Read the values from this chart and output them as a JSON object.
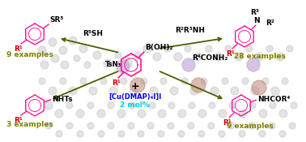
{
  "bg_color": "#ffffff",
  "pink": "#FF1493",
  "dark_red": "#CC0000",
  "olive": "#808000",
  "dark_green": "#4B6000",
  "blue": "#0000EE",
  "cyan": "#00CCDD",
  "black": "#000000",
  "gray_light": "#CCCCCC",
  "gray_med": "#AAAAAA",
  "purple": "#C0A8D8",
  "copper": "#C08878",
  "labels": {
    "catalyst": "[Cu(DMAP)₄I]I",
    "mol_pct": "2 mol%",
    "boronic": "B(OH)₂",
    "plus": "+",
    "r5sh": "R⁵SH",
    "r2r3nh": "R²R³NH",
    "r4conh2": "R⁴CONH₂",
    "tsn3": "TsN₃",
    "sr5": "SR⁵",
    "nhts": "NHTs",
    "r3": "R³",
    "n_label": "N",
    "r2": "R²",
    "nhcor4": "NHCOR⁴",
    "r1": "R¹",
    "ex9_top": "9 examples",
    "ex3": "3 examples",
    "ex28": "28 examples",
    "ex9_bot": "9 examples"
  },
  "gray_circles": [
    [
      52,
      62,
      5
    ],
    [
      65,
      52,
      5
    ],
    [
      78,
      62,
      5
    ],
    [
      90,
      50,
      5
    ],
    [
      103,
      60,
      5
    ],
    [
      55,
      80,
      5
    ],
    [
      68,
      72,
      5
    ],
    [
      80,
      80,
      5
    ],
    [
      95,
      72,
      4
    ],
    [
      108,
      80,
      4
    ],
    [
      120,
      68,
      5
    ],
    [
      133,
      78,
      5
    ],
    [
      146,
      68,
      4
    ],
    [
      158,
      78,
      5
    ],
    [
      170,
      68,
      4
    ],
    [
      182,
      60,
      5
    ],
    [
      194,
      70,
      5
    ],
    [
      207,
      60,
      4
    ],
    [
      220,
      70,
      5
    ],
    [
      232,
      60,
      4
    ],
    [
      245,
      70,
      5
    ],
    [
      258,
      60,
      4
    ],
    [
      270,
      70,
      5
    ],
    [
      282,
      60,
      4
    ],
    [
      295,
      70,
      5
    ],
    [
      308,
      60,
      4
    ],
    [
      320,
      70,
      5
    ],
    [
      333,
      60,
      4
    ],
    [
      346,
      70,
      5
    ],
    [
      358,
      60,
      4
    ],
    [
      52,
      100,
      4
    ],
    [
      65,
      112,
      5
    ],
    [
      78,
      100,
      4
    ],
    [
      90,
      112,
      5
    ],
    [
      103,
      100,
      4
    ],
    [
      115,
      112,
      5
    ],
    [
      128,
      100,
      4
    ],
    [
      140,
      112,
      5
    ],
    [
      153,
      100,
      4
    ],
    [
      165,
      112,
      5
    ],
    [
      178,
      100,
      4
    ],
    [
      190,
      112,
      5
    ],
    [
      202,
      100,
      4
    ],
    [
      215,
      112,
      5
    ],
    [
      228,
      100,
      4
    ],
    [
      240,
      112,
      5
    ],
    [
      252,
      100,
      4
    ],
    [
      265,
      112,
      5
    ],
    [
      278,
      100,
      4
    ],
    [
      290,
      112,
      5
    ],
    [
      303,
      100,
      4
    ],
    [
      315,
      112,
      5
    ],
    [
      328,
      100,
      4
    ],
    [
      340,
      112,
      5
    ],
    [
      352,
      100,
      4
    ],
    [
      60,
      130,
      5
    ],
    [
      73,
      140,
      5
    ],
    [
      86,
      130,
      4
    ],
    [
      99,
      140,
      5
    ],
    [
      112,
      130,
      4
    ],
    [
      125,
      140,
      5
    ],
    [
      137,
      130,
      4
    ],
    [
      150,
      140,
      5
    ],
    [
      163,
      130,
      4
    ],
    [
      175,
      140,
      5
    ],
    [
      188,
      130,
      4
    ],
    [
      200,
      140,
      5
    ],
    [
      212,
      130,
      4
    ],
    [
      225,
      140,
      5
    ],
    [
      237,
      130,
      4
    ],
    [
      250,
      140,
      5
    ],
    [
      262,
      130,
      4
    ],
    [
      275,
      140,
      5
    ],
    [
      287,
      130,
      4
    ],
    [
      300,
      140,
      5
    ],
    [
      312,
      130,
      4
    ],
    [
      325,
      140,
      5
    ],
    [
      337,
      130,
      4
    ],
    [
      350,
      140,
      5
    ],
    [
      363,
      130,
      4
    ],
    [
      60,
      155,
      4
    ],
    [
      73,
      165,
      4
    ],
    [
      86,
      155,
      4
    ],
    [
      99,
      165,
      4
    ],
    [
      112,
      155,
      4
    ],
    [
      125,
      165,
      4
    ],
    [
      137,
      155,
      4
    ],
    [
      150,
      165,
      4
    ],
    [
      162,
      155,
      4
    ],
    [
      174,
      165,
      4
    ],
    [
      186,
      155,
      4
    ],
    [
      199,
      165,
      4
    ],
    [
      211,
      155,
      4
    ],
    [
      224,
      165,
      4
    ],
    [
      236,
      155,
      4
    ],
    [
      249,
      165,
      4
    ],
    [
      261,
      155,
      4
    ],
    [
      274,
      165,
      4
    ],
    [
      286,
      155,
      4
    ],
    [
      299,
      165,
      4
    ],
    [
      311,
      155,
      4
    ],
    [
      324,
      165,
      4
    ],
    [
      336,
      155,
      4
    ],
    [
      349,
      165,
      4
    ],
    [
      361,
      155,
      4
    ]
  ],
  "purple_circles": [
    [
      152,
      82,
      8
    ],
    [
      233,
      80,
      8
    ],
    [
      313,
      80,
      8
    ]
  ],
  "copper_circles": [
    [
      170,
      105,
      9
    ],
    [
      245,
      105,
      9
    ],
    [
      320,
      108,
      9
    ]
  ]
}
